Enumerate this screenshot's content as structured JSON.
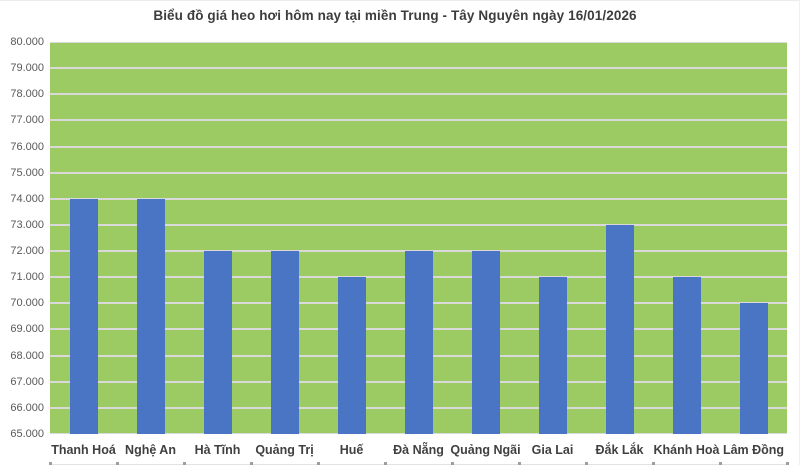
{
  "chart_data": {
    "type": "bar",
    "title": "Biểu đồ giá heo hơi hôm nay tại miền Trung - Tây Nguyên ngày 16/01/2026",
    "categories": [
      "Thanh Hoá",
      "Nghệ An",
      "Hà Tĩnh",
      "Quảng Trị",
      "Huế",
      "Đà Nẵng",
      "Quảng Ngãi",
      "Gia Lai",
      "Đắk Lắk",
      "Khánh Hoà",
      "Lâm Đồng"
    ],
    "values": [
      74000,
      74000,
      72000,
      72000,
      71000,
      72000,
      72000,
      71000,
      73000,
      71000,
      70000
    ],
    "xlabel": "",
    "ylabel": "",
    "ylim": [
      65000,
      80000
    ],
    "y_tick_step": 1000,
    "y_ticks": [
      {
        "value": 80000,
        "label": "80.000"
      },
      {
        "value": 79000,
        "label": "79.000"
      },
      {
        "value": 78000,
        "label": "78.000"
      },
      {
        "value": 77000,
        "label": "77.000"
      },
      {
        "value": 76000,
        "label": "76.000"
      },
      {
        "value": 75000,
        "label": "75.000"
      },
      {
        "value": 74000,
        "label": "74.000"
      },
      {
        "value": 73000,
        "label": "73.000"
      },
      {
        "value": 72000,
        "label": "72.000"
      },
      {
        "value": 71000,
        "label": "71.000"
      },
      {
        "value": 70000,
        "label": "70.000"
      },
      {
        "value": 69000,
        "label": "69.000"
      },
      {
        "value": 68000,
        "label": "68.000"
      },
      {
        "value": 67000,
        "label": "67.000"
      },
      {
        "value": 66000,
        "label": "66.000"
      },
      {
        "value": 65000,
        "label": "65.000"
      }
    ],
    "grid": true,
    "legend": false,
    "colors": {
      "bar_fill": "#4a74c4",
      "plot_background": "#9cca63",
      "gridline": "#d9d9d9",
      "title_text": "#3d3d3d",
      "y_tick_text": "#595959",
      "x_tick_text": "#404040"
    }
  }
}
